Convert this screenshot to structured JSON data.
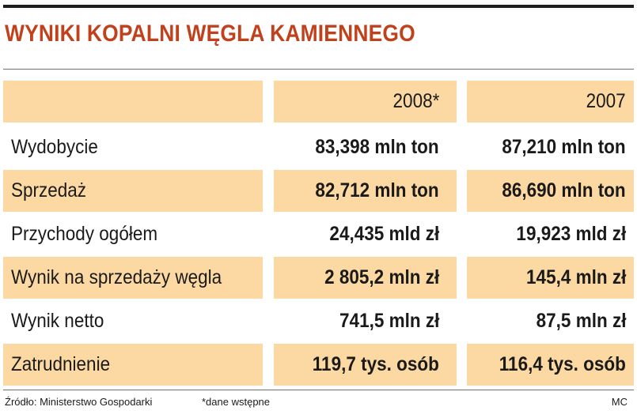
{
  "title": "WYNIKI KOPALNI WĘGLA KAMIENNEGO",
  "colors": {
    "title": "#c0411b",
    "row_shade": "#fcd9a2",
    "rule": "#1e1e1e"
  },
  "table": {
    "columns": [
      "",
      "2008*",
      "2007"
    ],
    "rows": [
      {
        "label": "Wydobycie",
        "v2008": "83,398 mln ton",
        "v2007": "87,210 mln ton"
      },
      {
        "label": "Sprzedaż",
        "v2008": "82,712 mln ton",
        "v2007": "86,690 mln ton"
      },
      {
        "label": "Przychody ogółem",
        "v2008": "24,435 mld zł",
        "v2007": "19,923 mld zł"
      },
      {
        "label": "Wynik na sprzedaży węgla",
        "v2008": "2 805,2 mln zł",
        "v2007": "145,4 mln zł"
      },
      {
        "label": "Wynik netto",
        "v2008": "741,5 mln zł",
        "v2007": "87,5 mln zł"
      },
      {
        "label": "Zatrudnienie",
        "v2008": "119,7 tys. osób",
        "v2007": "116,4 tys. osób"
      }
    ]
  },
  "footer": {
    "source": "Źródło: Ministerstwo Gospodarki",
    "note": "*dane wstępne",
    "author": "MC"
  }
}
